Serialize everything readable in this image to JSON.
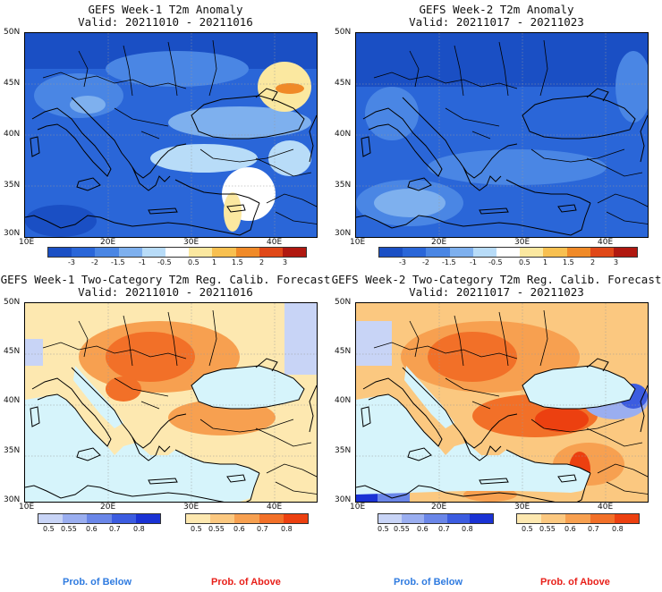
{
  "panels": [
    {
      "title": "GEFS Week-1 T2m Anomaly",
      "valid": "Valid: 20211010 - 20211016"
    },
    {
      "title": "GEFS Week-2 T2m Anomaly",
      "valid": "Valid: 20211017 - 20211023"
    },
    {
      "title": "GEFS Week-1 Two-Category T2m Reg. Calib. Forecast",
      "valid": "Valid: 20211010 - 20211016"
    },
    {
      "title": "GEFS Week-2 Two-Category T2m Reg. Calib. Forecast",
      "valid": "Valid: 20211017 - 20211023"
    }
  ],
  "lat_labels": [
    "50N",
    "45N",
    "40N",
    "35N",
    "30N"
  ],
  "lon_labels": [
    "10E",
    "20E",
    "30E",
    "40E"
  ],
  "anomaly_scale": {
    "labels": [
      "-3",
      "-2",
      "-1.5",
      "-1",
      "-0.5",
      "0.5",
      "1",
      "1.5",
      "2",
      "3"
    ],
    "colors": [
      "#1a4fc4",
      "#2a66d8",
      "#4a86e4",
      "#7eb0ee",
      "#b8dcf8",
      "#ffffff",
      "#fbe8a0",
      "#f8c050",
      "#f08a28",
      "#e04818",
      "#b01810"
    ]
  },
  "below_scale": {
    "labels": [
      "0.5",
      "0.55",
      "0.6",
      "0.7",
      "0.8"
    ],
    "colors": [
      "#c8d4f6",
      "#9aaef0",
      "#6a86e8",
      "#3c5ce0",
      "#1a32d4"
    ]
  },
  "above_scale": {
    "labels": [
      "0.5",
      "0.55",
      "0.6",
      "0.7",
      "0.8"
    ],
    "colors": [
      "#fde8b0",
      "#fbc880",
      "#f7a050",
      "#f27028",
      "#ec4010"
    ]
  },
  "legend": {
    "below": "Prob. of Below",
    "above": "Prob. of Above"
  },
  "colors": {
    "below_label": "#2f7be0",
    "above_label": "#e8201a",
    "sea_prob": "#d6f4fb"
  }
}
